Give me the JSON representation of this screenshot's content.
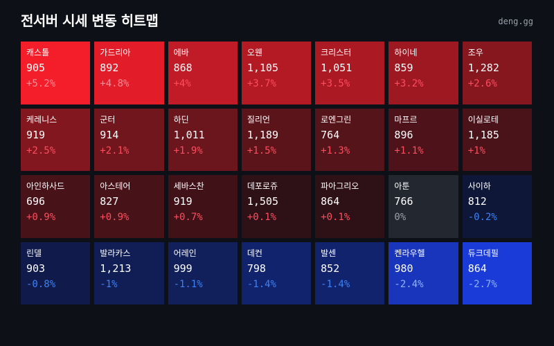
{
  "header": {
    "title": "전서버 시세 변동 히트맵",
    "brand": "deng.gg"
  },
  "colors": {
    "background": "#0d1017",
    "positive_text": "#ff4d5e",
    "negative_text": "#3b82f6",
    "neutral_text": "#9aa0aa",
    "positive_max": "#f41e2b",
    "negative_max": "#1a3bd8",
    "neutral": "#232830"
  },
  "chart_data": {
    "type": "heatmap",
    "title": "전서버 시세 변동 히트맵",
    "columns": 7,
    "cells": [
      {
        "name": "캐스톨",
        "price": "905",
        "change": 5.2,
        "change_label": "+5.2%"
      },
      {
        "name": "가드리아",
        "price": "892",
        "change": 4.8,
        "change_label": "+4.8%"
      },
      {
        "name": "에바",
        "price": "868",
        "change": 4,
        "change_label": "+4%"
      },
      {
        "name": "오웬",
        "price": "1,105",
        "change": 3.7,
        "change_label": "+3.7%"
      },
      {
        "name": "크리스터",
        "price": "1,051",
        "change": 3.5,
        "change_label": "+3.5%"
      },
      {
        "name": "하이네",
        "price": "859",
        "change": 3.2,
        "change_label": "+3.2%"
      },
      {
        "name": "조우",
        "price": "1,282",
        "change": 2.6,
        "change_label": "+2.6%"
      },
      {
        "name": "케레니스",
        "price": "919",
        "change": 2.5,
        "change_label": "+2.5%"
      },
      {
        "name": "군터",
        "price": "914",
        "change": 2.1,
        "change_label": "+2.1%"
      },
      {
        "name": "하딘",
        "price": "1,011",
        "change": 1.9,
        "change_label": "+1.9%"
      },
      {
        "name": "질리언",
        "price": "1,189",
        "change": 1.5,
        "change_label": "+1.5%"
      },
      {
        "name": "로엔그린",
        "price": "764",
        "change": 1.3,
        "change_label": "+1.3%"
      },
      {
        "name": "마프르",
        "price": "896",
        "change": 1.1,
        "change_label": "+1.1%"
      },
      {
        "name": "이실로테",
        "price": "1,185",
        "change": 1,
        "change_label": "+1%"
      },
      {
        "name": "아인하사드",
        "price": "696",
        "change": 0.9,
        "change_label": "+0.9%"
      },
      {
        "name": "아스테어",
        "price": "827",
        "change": 0.9,
        "change_label": "+0.9%"
      },
      {
        "name": "세바스찬",
        "price": "919",
        "change": 0.7,
        "change_label": "+0.7%"
      },
      {
        "name": "데포로쥬",
        "price": "1,505",
        "change": 0.1,
        "change_label": "+0.1%"
      },
      {
        "name": "파아그리오",
        "price": "864",
        "change": 0.1,
        "change_label": "+0.1%"
      },
      {
        "name": "아툰",
        "price": "766",
        "change": 0,
        "change_label": "0%"
      },
      {
        "name": "사이하",
        "price": "812",
        "change": -0.2,
        "change_label": "-0.2%"
      },
      {
        "name": "린델",
        "price": "903",
        "change": -0.8,
        "change_label": "-0.8%"
      },
      {
        "name": "발라카스",
        "price": "1,213",
        "change": -1,
        "change_label": "-1%"
      },
      {
        "name": "어레인",
        "price": "999",
        "change": -1.1,
        "change_label": "-1.1%"
      },
      {
        "name": "데컨",
        "price": "798",
        "change": -1.4,
        "change_label": "-1.4%"
      },
      {
        "name": "발센",
        "price": "852",
        "change": -1.4,
        "change_label": "-1.4%"
      },
      {
        "name": "켄라우헬",
        "price": "980",
        "change": -2.4,
        "change_label": "-2.4%"
      },
      {
        "name": "듀크데필",
        "price": "864",
        "change": -2.7,
        "change_label": "-2.7%"
      }
    ]
  }
}
